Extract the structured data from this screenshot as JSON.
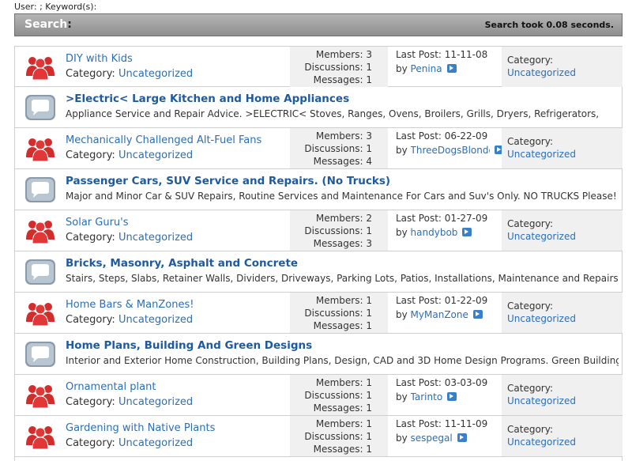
{
  "header": {
    "meta": "User: ; Keyword(s):"
  },
  "search_bar": {
    "label": "Search",
    "colon": ":",
    "took": "Search took 0.08 seconds."
  },
  "labels": {
    "category": "Category:",
    "members": "Members:",
    "discussions": "Discussions:",
    "messages": "Messages:",
    "last_post": "Last Post:",
    "by": "by"
  },
  "rows": [
    {
      "kind": "group",
      "title": "DIY with Kids",
      "category": "Uncategorized",
      "members": "3",
      "discussions": "1",
      "messages": "1",
      "last_post": "11-11-08",
      "author": "Penina"
    },
    {
      "kind": "room",
      "title": ">Electric< Large Kitchen and Home Appliances",
      "description": "Appliance Service and Repair Advice. >ELECTRIC< Stoves, Ranges, Ovens, Broilers, Grills, Dryers, Refrigerators,"
    },
    {
      "kind": "group",
      "title": "Mechanically Challenged Alt-Fuel Fans",
      "category": "Uncategorized",
      "members": "3",
      "discussions": "1",
      "messages": "4",
      "last_post": "06-22-09",
      "author": "ThreeDogsBlonde"
    },
    {
      "kind": "room",
      "title": "Passenger Cars, SUV Service and Repairs. (No Trucks)",
      "description": "Major and Minor Car & SUV Repairs, Routine Services and Maintenance For Cars and Suv's Only. NO TRUCKS Please!"
    },
    {
      "kind": "group",
      "title": "Solar Guru's",
      "category": "Uncategorized",
      "members": "2",
      "discussions": "1",
      "messages": "3",
      "last_post": "01-27-09",
      "author": "handybob"
    },
    {
      "kind": "room",
      "title": "Bricks, Masonry, Asphalt and Concrete",
      "description": "Stairs, Steps, Slabs, Retainer Walls, Dividers, Driveways, Parking Lots, Patios, Installations, Maintenance and Repairs."
    },
    {
      "kind": "group",
      "title": "Home Bars & ManZones!",
      "category": "Uncategorized",
      "members": "1",
      "discussions": "1",
      "messages": "1",
      "last_post": "01-22-09",
      "author": "MyManZone"
    },
    {
      "kind": "room",
      "title": "Home Plans, Building And Green Designs",
      "description": "Interior and Exterior Home Construction, Building Plans, Design, CAD and 3D Home Design Programs. Green Building"
    },
    {
      "kind": "group",
      "title": "Ornamental plant",
      "category": "Uncategorized",
      "members": "1",
      "discussions": "1",
      "messages": "1",
      "last_post": "03-03-09",
      "author": "Tarinto"
    },
    {
      "kind": "group",
      "title": "Gardening with Native Plants",
      "category": "Uncategorized",
      "members": "1",
      "discussions": "1",
      "messages": "1",
      "last_post": "11-11-09",
      "author": "sespegal"
    }
  ],
  "colors": {
    "link": "#2c6eb5",
    "title_bold": "#1f5aa0",
    "stat_bg": "#f0f0f0",
    "group_icon": "#d42b2b",
    "room_icon": "#8a9aa8"
  }
}
